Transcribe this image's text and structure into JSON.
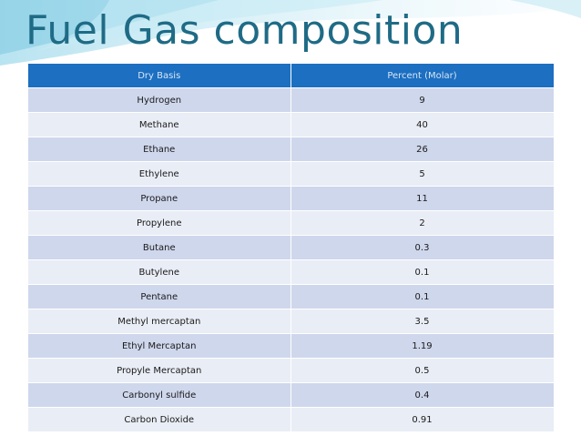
{
  "title": "Fuel Gas composition",
  "table": {
    "headers": [
      "Dry Basis",
      "Percent (Molar)"
    ],
    "rows": [
      [
        "Hydrogen",
        "9"
      ],
      [
        "Methane",
        "40"
      ],
      [
        "Ethane",
        "26"
      ],
      [
        "Ethylene",
        "5"
      ],
      [
        "Propane",
        "11"
      ],
      [
        "Propylene",
        "2"
      ],
      [
        "Butane",
        "0.3"
      ],
      [
        "Butylene",
        "0.1"
      ],
      [
        "Pentane",
        "0.1"
      ],
      [
        "Methyl mercaptan",
        "3.5"
      ],
      [
        "Ethyl Mercaptan",
        "1.19"
      ],
      [
        "Propyle Mercaptan",
        "0.5"
      ],
      [
        "Carbonyl sulfide",
        "0.4"
      ],
      [
        "Carbon Dioxide",
        "0.91"
      ]
    ]
  },
  "colors": {
    "title": "#1f6b86",
    "header_bg": "#1c6fc1",
    "row_dark": "#cfd7ec",
    "row_light": "#e9edf6"
  }
}
